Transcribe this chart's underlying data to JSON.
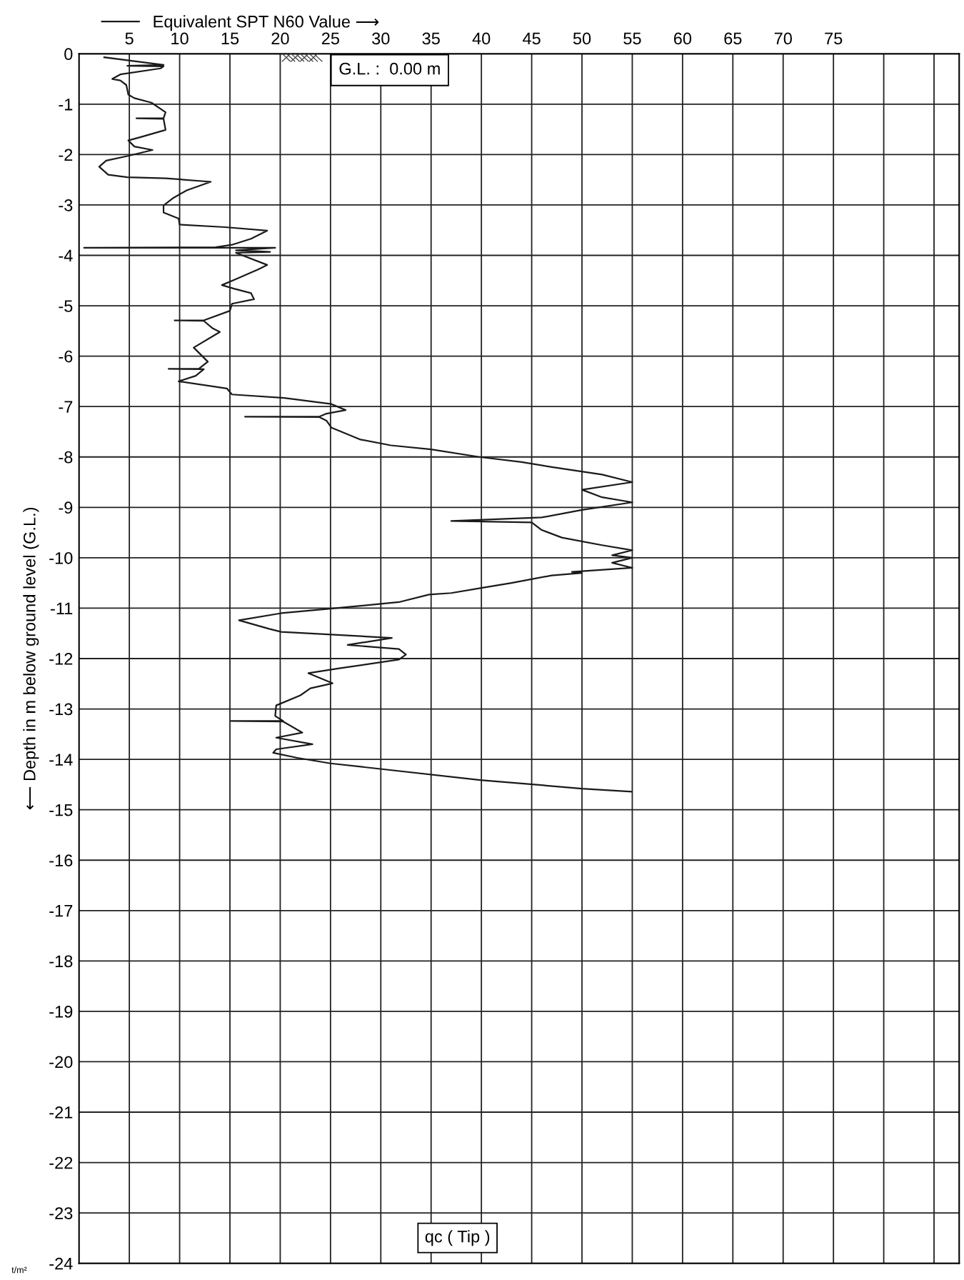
{
  "chart_data": {
    "type": "line",
    "ylabel": "⟵ Depth in m below ground level (G.L.)",
    "xlim": [
      0,
      87.5
    ],
    "ylim": [
      -24,
      0
    ],
    "xticks": [
      5,
      10,
      15,
      20,
      25,
      30,
      35,
      40,
      45,
      50,
      55,
      60,
      65,
      70,
      75,
      {
        "value": 80,
        "label": null
      },
      {
        "value": 85,
        "label": null
      }
    ],
    "yticks": [
      0,
      -1,
      -2,
      -3,
      -4,
      -5,
      -6,
      -7,
      -8,
      -9,
      -10,
      -11,
      -12,
      -13,
      -14,
      -15,
      -16,
      -17,
      -18,
      -19,
      -20,
      -21,
      -22,
      -23,
      -24
    ],
    "grid": true,
    "legend": "top",
    "marker": "none",
    "line_style": "solid",
    "annotations": [
      "G.L. :  0.00 m",
      "qc ( Tip )",
      "t/m²"
    ],
    "series": [
      {
        "name": "Equivalent SPT N60 Value ⟶",
        "color": "#1a1a1a",
        "x": [
          2.5,
          4.8,
          8.4,
          4.8,
          8.4,
          8.1,
          4.1,
          3.3,
          4.1,
          4.7,
          4.9,
          5.5,
          7.2,
          8.6,
          8.4,
          5.7,
          8.4,
          8.6,
          6.2,
          4.9,
          5.5,
          7.3,
          4.8,
          2.7,
          2.0,
          2.9,
          4.8,
          8.6,
          13.1,
          10.7,
          9.3,
          8.4,
          8.4,
          9.9,
          10.0,
          14.5,
          18.7,
          17.1,
          15.2,
          13.6,
          0.5,
          19.5,
          15.6,
          19.0,
          15.6,
          18.7,
          17.8,
          15.6,
          14.2,
          15.4,
          17.1,
          17.4,
          15.2,
          15.0,
          12.4,
          9.5,
          12.4,
          13.3,
          14.0,
          11.4,
          12.8,
          11.9,
          8.9,
          12.4,
          11.6,
          9.9,
          14.7,
          15.2,
          20.4,
          25.1,
          26.5,
          24.6,
          23.9,
          16.5,
          23.9,
          24.6,
          25.1,
          27.9,
          31,
          35,
          39.8,
          44,
          47,
          52,
          55,
          50,
          52,
          55,
          50,
          46,
          37,
          45,
          46,
          48,
          52,
          55,
          53,
          55,
          53,
          55,
          49,
          50,
          47,
          43,
          40,
          37,
          34.8,
          31.8,
          25,
          20.1,
          15.9,
          18.9,
          20.1,
          31.1,
          26.7,
          31.8,
          32.5,
          31.8,
          26.0,
          22.8,
          25.2,
          23,
          22,
          19.6,
          19.5,
          20.3,
          15.1,
          20.3,
          22.2,
          19.6,
          23.2,
          19.6,
          19.3,
          21.7,
          25,
          39.9,
          50.0,
          54.9
        ],
        "values": [
          -0.07,
          -0.13,
          -0.22,
          -0.24,
          -0.25,
          -0.29,
          -0.41,
          -0.5,
          -0.53,
          -0.62,
          -0.81,
          -0.88,
          -0.97,
          -1.16,
          -1.28,
          -1.28,
          -1.29,
          -1.51,
          -1.65,
          -1.72,
          -1.84,
          -1.91,
          -2.03,
          -2.12,
          -2.24,
          -2.4,
          -2.45,
          -2.47,
          -2.54,
          -2.71,
          -2.87,
          -3.01,
          -3.15,
          -3.27,
          -3.39,
          -3.44,
          -3.51,
          -3.67,
          -3.79,
          -3.84,
          -3.85,
          -3.85,
          -3.9,
          -3.93,
          -3.95,
          -4.19,
          -4.28,
          -4.47,
          -4.59,
          -4.66,
          -4.75,
          -4.87,
          -4.96,
          -5.1,
          -5.29,
          -5.29,
          -5.3,
          -5.45,
          -5.52,
          -5.83,
          -6.11,
          -6.25,
          -6.25,
          -6.26,
          -6.39,
          -6.5,
          -6.64,
          -6.76,
          -6.83,
          -6.95,
          -7.07,
          -7.14,
          -7.2,
          -7.2,
          -7.21,
          -7.28,
          -7.42,
          -7.65,
          -7.77,
          -7.85,
          -8.0,
          -8.1,
          -8.2,
          -8.35,
          -8.5,
          -8.65,
          -8.8,
          -8.9,
          -9.05,
          -9.2,
          -9.27,
          -9.3,
          -9.45,
          -9.6,
          -9.75,
          -9.85,
          -9.95,
          -10.0,
          -10.1,
          -10.2,
          -10.28,
          -10.3,
          -10.35,
          -10.5,
          -10.6,
          -10.7,
          -10.73,
          -10.88,
          -11.01,
          -11.1,
          -11.24,
          -11.41,
          -11.47,
          -11.59,
          -11.73,
          -11.81,
          -11.92,
          -12.02,
          -12.19,
          -12.29,
          -12.49,
          -12.59,
          -12.73,
          -12.93,
          -13.14,
          -13.24,
          -13.24,
          -13.25,
          -13.47,
          -13.57,
          -13.7,
          -13.8,
          -13.87,
          -13.97,
          -14.08,
          -14.41,
          -14.58,
          -14.64
        ]
      }
    ]
  }
}
